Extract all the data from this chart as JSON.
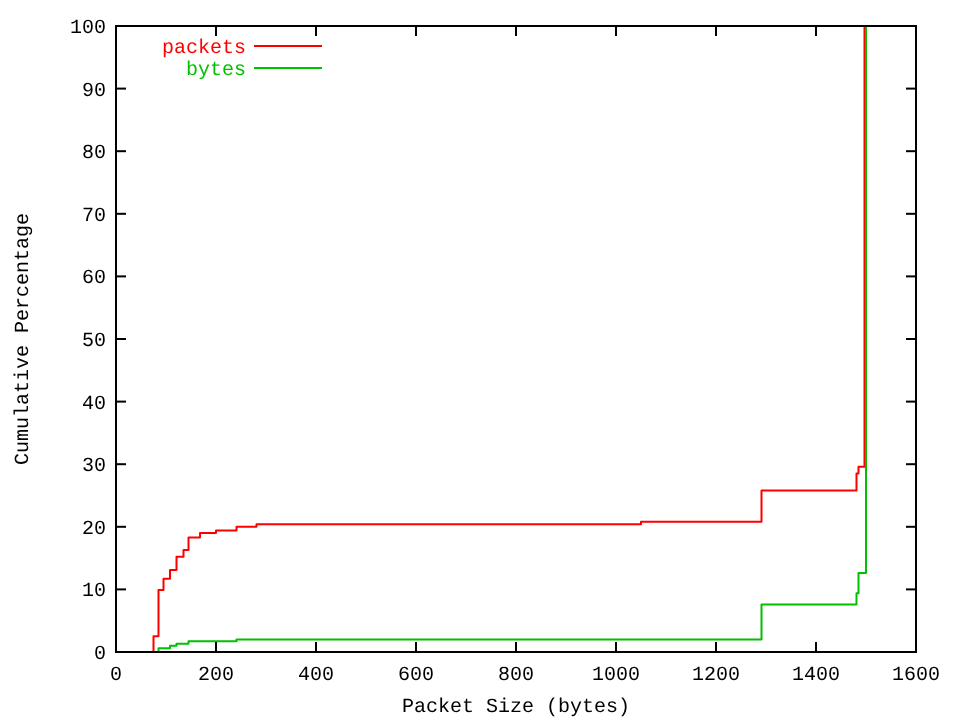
{
  "chart_data": {
    "type": "step",
    "xlabel": "Packet Size (bytes)",
    "ylabel": "Cumulative Percentage",
    "xlim": [
      0,
      1600
    ],
    "ylim": [
      0,
      100
    ],
    "xticks": [
      0,
      200,
      400,
      600,
      800,
      1000,
      1200,
      1400,
      1600
    ],
    "yticks": [
      0,
      10,
      20,
      30,
      40,
      50,
      60,
      70,
      80,
      90,
      100
    ],
    "grid": false,
    "legend": "top left",
    "line_style": "solid",
    "marker": "none",
    "series": [
      {
        "name": "packets",
        "color": "#ff0000",
        "x": [
          65,
          75,
          85,
          95,
          108,
          121,
          135,
          145,
          168,
          200,
          241,
          281,
          1050,
          1291,
          1481,
          1485,
          1497,
          1500
        ],
        "values": [
          0,
          2.5,
          9.9,
          11.7,
          13.1,
          15.2,
          16.3,
          18.3,
          19,
          19.4,
          20,
          20.4,
          20.8,
          25.8,
          28.5,
          29.6,
          100,
          100
        ]
      },
      {
        "name": "bytes",
        "color": "#00c000",
        "x": [
          65,
          85,
          108,
          121,
          145,
          241,
          1291,
          1481,
          1485,
          1500
        ],
        "values": [
          0,
          0.6,
          1,
          1.3,
          1.7,
          2,
          7.6,
          9.4,
          12.6,
          100
        ]
      }
    ]
  }
}
